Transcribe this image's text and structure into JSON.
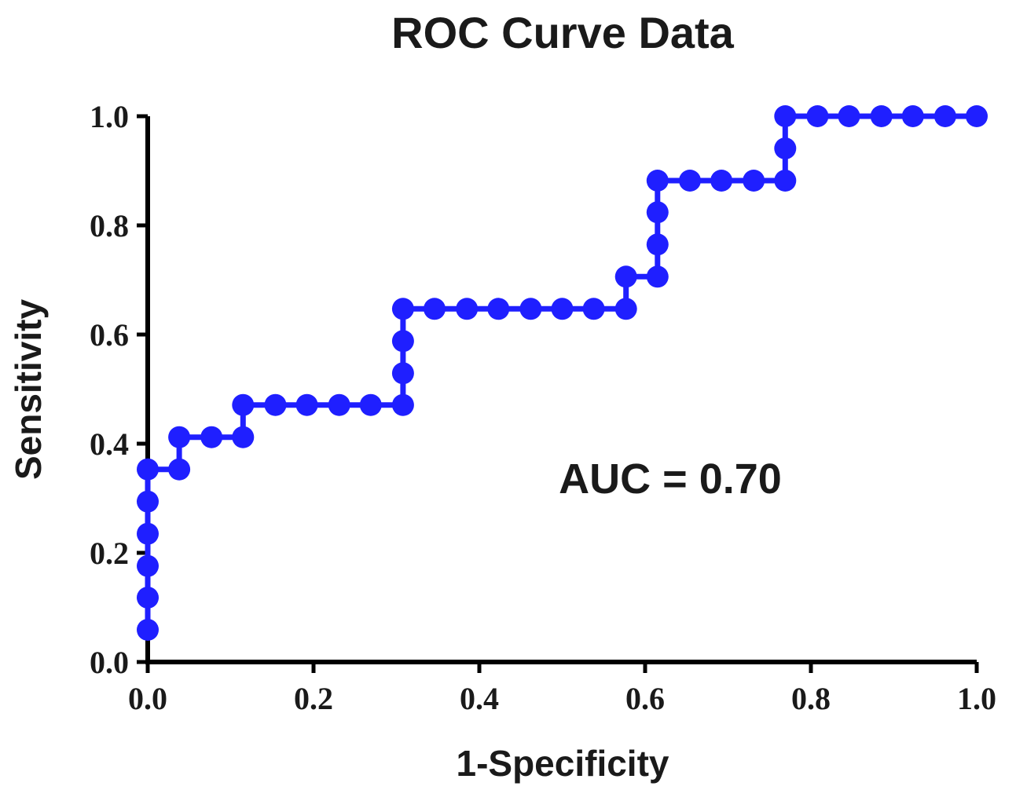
{
  "chart_data": {
    "type": "line",
    "title": "ROC Curve Data",
    "xlabel": "1-Specificity",
    "ylabel": "Sensitivity",
    "xlim": [
      0,
      1
    ],
    "ylim": [
      0,
      1
    ],
    "x_ticks": [
      "0.0",
      "0.2",
      "0.4",
      "0.6",
      "0.8",
      "1.0"
    ],
    "y_ticks": [
      "0.0",
      "0.2",
      "0.4",
      "0.6",
      "0.8",
      "1.0"
    ],
    "grid": false,
    "legend": "none",
    "annotation": "AUC = 0.70",
    "series": [
      {
        "color": "#1f1fff",
        "marker": "circle",
        "step": true,
        "x": [
          0,
          0,
          0,
          0,
          0,
          0,
          0.038,
          0.038,
          0.077,
          0.115,
          0.115,
          0.154,
          0.192,
          0.231,
          0.269,
          0.308,
          0.308,
          0.308,
          0.308,
          0.346,
          0.385,
          0.423,
          0.462,
          0.5,
          0.538,
          0.577,
          0.577,
          0.615,
          0.615,
          0.615,
          0.615,
          0.654,
          0.692,
          0.731,
          0.769,
          0.769,
          0.769,
          0.808,
          0.846,
          0.885,
          0.923,
          0.962,
          1.0
        ],
        "y": [
          0.059,
          0.118,
          0.176,
          0.235,
          0.294,
          0.353,
          0.353,
          0.412,
          0.412,
          0.412,
          0.471,
          0.471,
          0.471,
          0.471,
          0.471,
          0.471,
          0.529,
          0.588,
          0.647,
          0.647,
          0.647,
          0.647,
          0.647,
          0.647,
          0.647,
          0.647,
          0.706,
          0.706,
          0.765,
          0.824,
          0.882,
          0.882,
          0.882,
          0.882,
          0.882,
          0.941,
          1.0,
          1.0,
          1.0,
          1.0,
          1.0,
          1.0,
          1.0
        ]
      }
    ]
  }
}
